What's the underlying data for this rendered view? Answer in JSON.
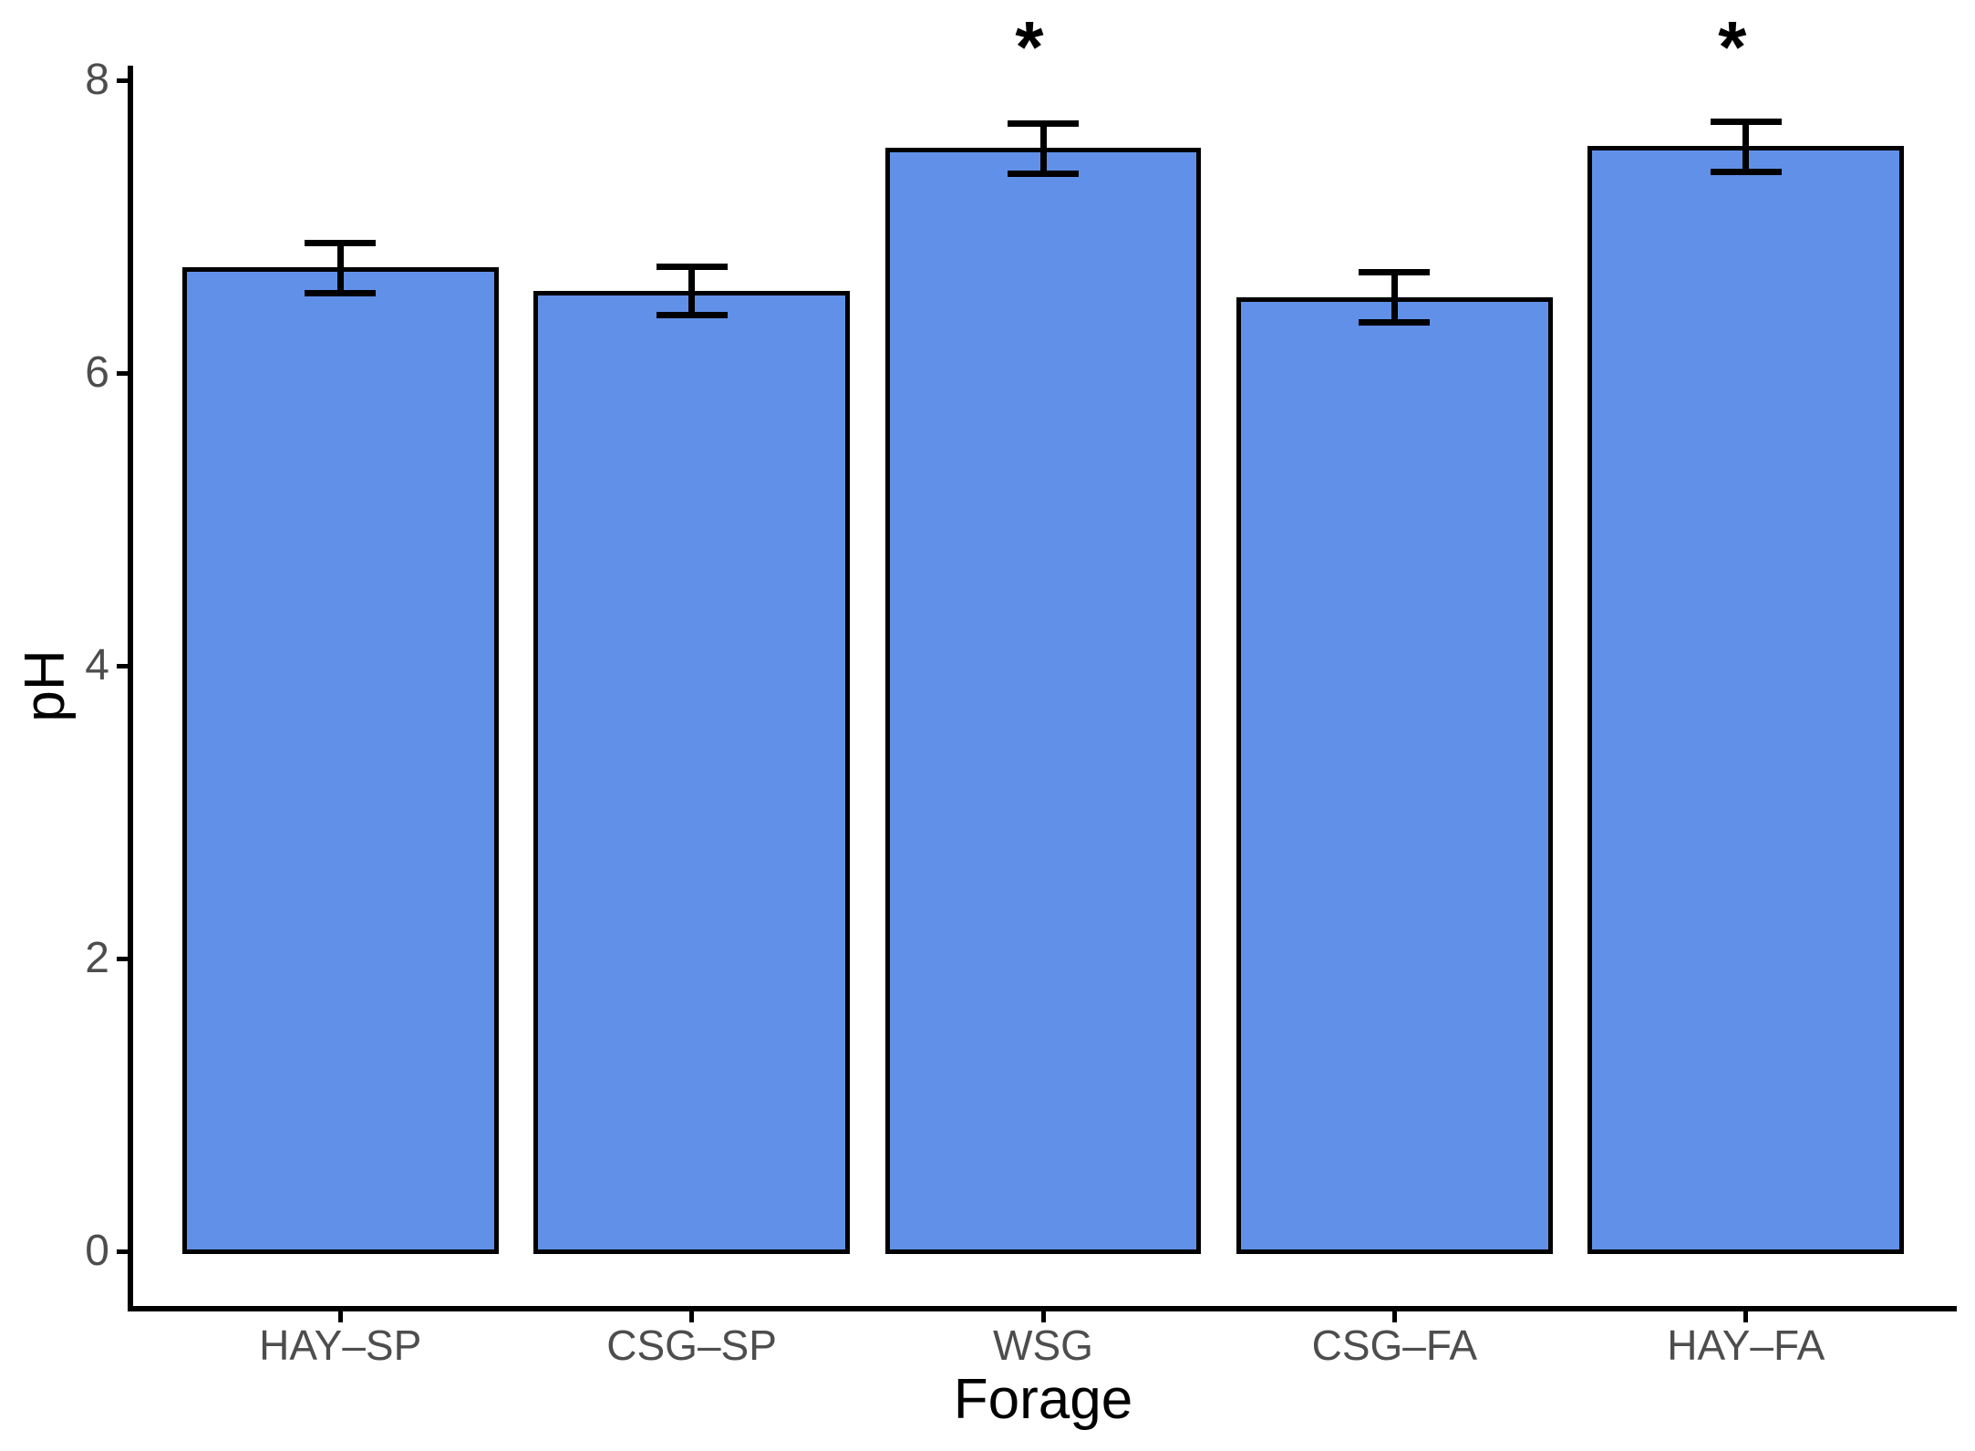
{
  "chart_data": {
    "type": "bar",
    "title": "",
    "xlabel": "Forage",
    "ylabel": "pH",
    "categories": [
      "HAY–SP",
      "CSG–SP",
      "WSG",
      "CSG–FA",
      "HAY–FA"
    ],
    "values": [
      6.72,
      6.56,
      7.54,
      6.52,
      7.55
    ],
    "errors_upper": [
      6.89,
      6.73,
      7.71,
      6.69,
      7.72
    ],
    "errors_lower": [
      6.54,
      6.39,
      7.36,
      6.34,
      7.37
    ],
    "significance": [
      false,
      false,
      true,
      false,
      true
    ],
    "significance_marker": "*",
    "yticks": [
      0,
      2,
      4,
      6,
      8
    ],
    "ylim": [
      0,
      8.4
    ],
    "grid": false,
    "legend": false,
    "bar_fill_color": "#6190E8",
    "bar_border_color": "#000000",
    "error_bar_color": "#000000",
    "axis_line_color": "#000000",
    "tick_label_color": "#4d4d4d",
    "axis_title_color": "#000000"
  }
}
